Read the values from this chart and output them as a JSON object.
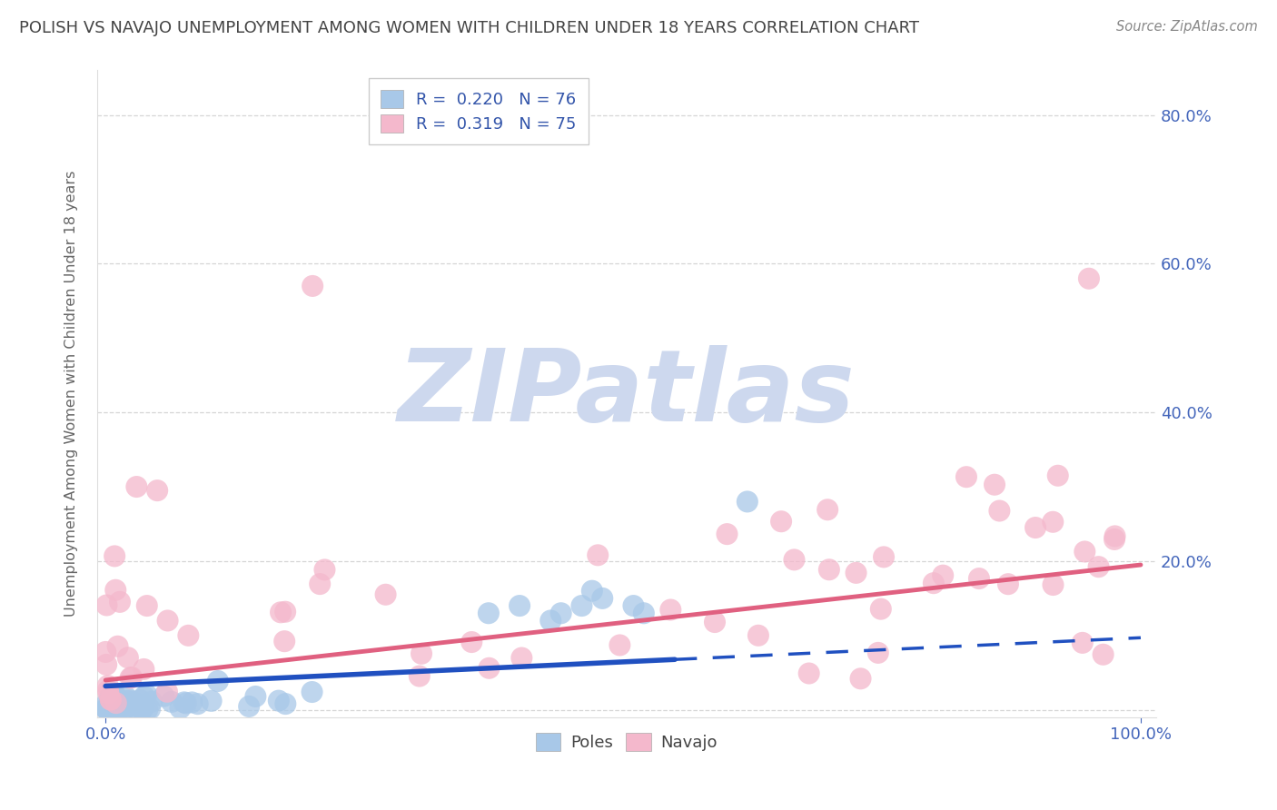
{
  "title": "POLISH VS NAVAJO UNEMPLOYMENT AMONG WOMEN WITH CHILDREN UNDER 18 YEARS CORRELATION CHART",
  "source": "Source: ZipAtlas.com",
  "ylabel": "Unemployment Among Women with Children Under 18 years",
  "poles_color": "#a8c8e8",
  "navajo_color": "#f4b8cc",
  "poles_line_color": "#2050c0",
  "navajo_line_color": "#e06080",
  "watermark": "ZIPatlas",
  "watermark_color": "#cdd8ee",
  "background_color": "#ffffff",
  "grid_color": "#cccccc",
  "title_color": "#444444",
  "tick_label_color": "#4466bb",
  "ylabel_color": "#666666",
  "source_color": "#888888",
  "legend_R_color": "#3355aa",
  "legend_N_color": "#3355aa",
  "legend_box_edge": "#cccccc",
  "poles_label": "Poles",
  "navajo_label": "Navajo"
}
